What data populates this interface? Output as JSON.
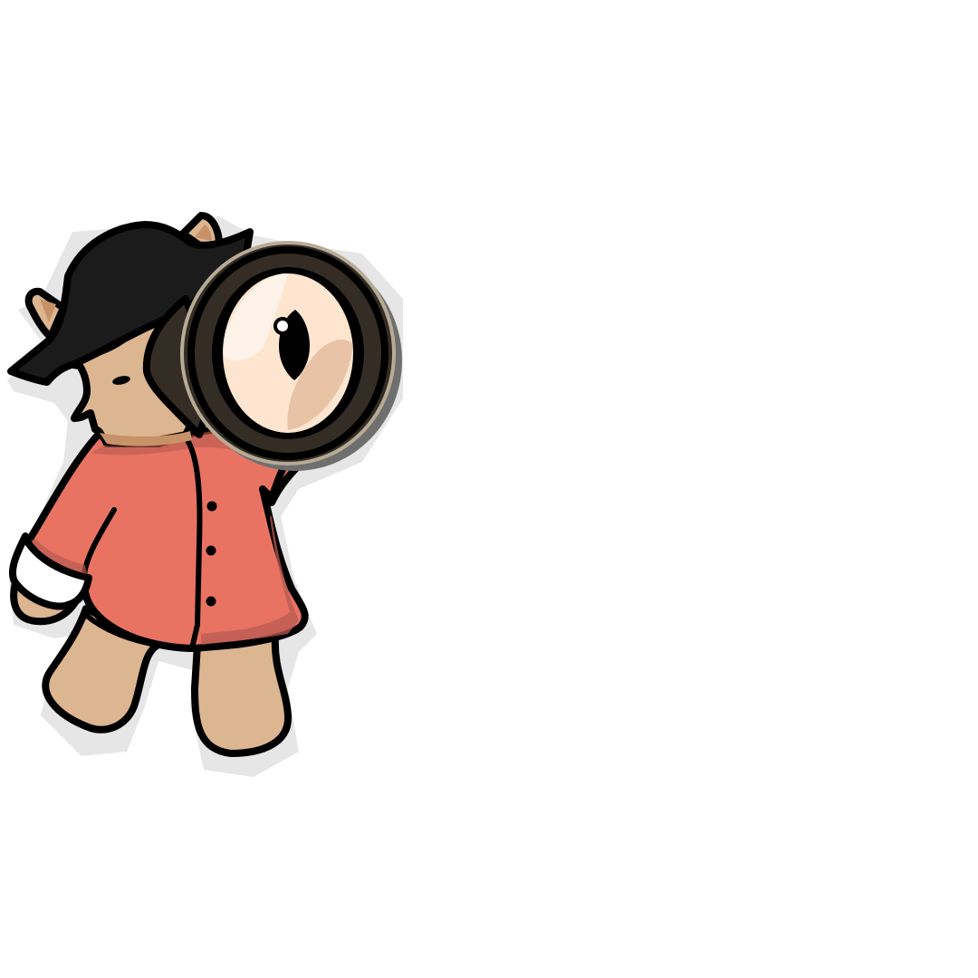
{
  "scene": {
    "background": "#ffffff",
    "subject": "detective-cat-with-magnifying-glass",
    "colors": {
      "skin": "#dcb591",
      "skin_shade": "#c79268",
      "hat": "#1b1b1b",
      "coat": "#e87363",
      "coat_shade": "#b85a50",
      "cuff": "#ffffff",
      "lens_rim": "#332d26",
      "lens_glass": "#fde5cf",
      "shadow": "#e6e6e6"
    },
    "icons": [
      "cat-character-icon",
      "magnifying-glass-icon",
      "eye-icon"
    ]
  }
}
